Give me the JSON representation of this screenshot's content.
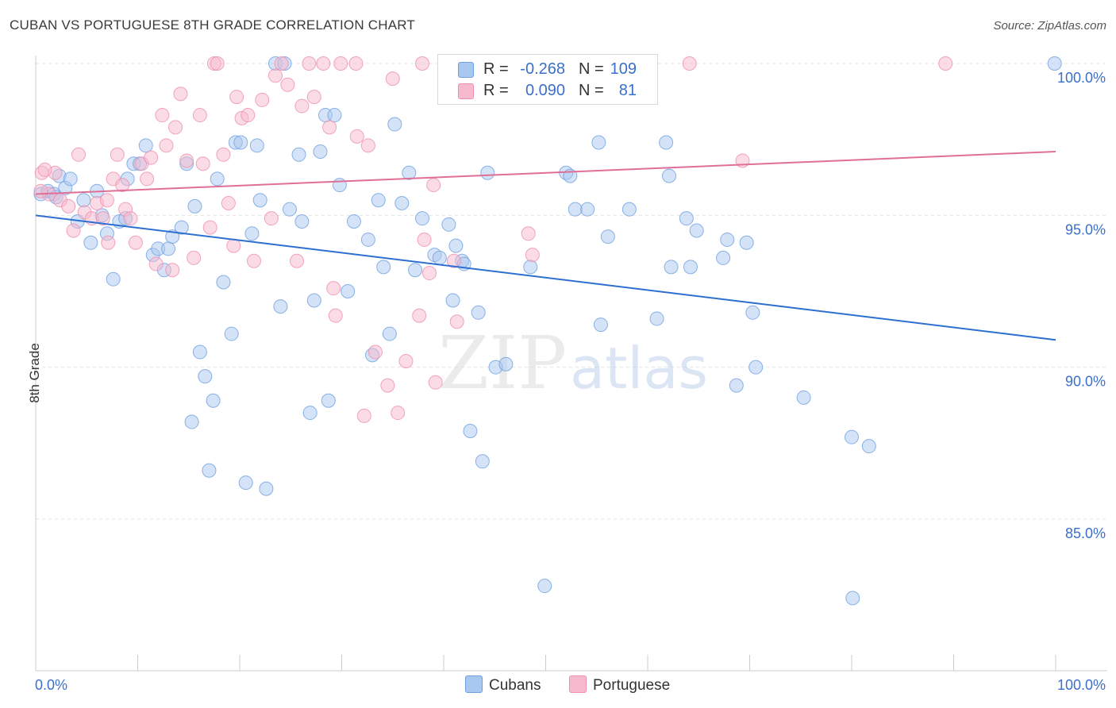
{
  "header": {
    "title": "CUBAN VS PORTUGUESE 8TH GRADE CORRELATION CHART",
    "source": "Source: ZipAtlas.com"
  },
  "watermark": {
    "zip": "ZIP",
    "atlas": "atlas"
  },
  "legend_top": {
    "rows": [
      {
        "series": "Cubans",
        "r_label": "R =",
        "r_value": "-0.268",
        "n_label": "N =",
        "n_value": "109",
        "color": "#a9c8f0"
      },
      {
        "series": "Portuguese",
        "r_label": "R =",
        "r_value": "0.090",
        "n_label": "N =",
        "n_value": "81",
        "color": "#f7b9cd"
      }
    ]
  },
  "legend_bottom": [
    {
      "label": "Cubans",
      "color": "#a9c8f0"
    },
    {
      "label": "Portuguese",
      "color": "#f7b9cd"
    }
  ],
  "chart_data": {
    "type": "scatter",
    "title": "CUBAN VS PORTUGUESE 8TH GRADE CORRELATION CHART",
    "xlabel": "",
    "ylabel": "8th Grade",
    "xlim": [
      0,
      100
    ],
    "ylim": [
      80,
      100.5
    ],
    "x_tick_labels": [
      "0.0%",
      "100.0%"
    ],
    "y_ticks": [
      85,
      90,
      95,
      100
    ],
    "y_tick_labels": [
      "85.0%",
      "90.0%",
      "95.0%",
      "100.0%"
    ],
    "grid": true,
    "colors": {
      "cubans_fill": "#a9c8f0",
      "cubans_stroke": "#6fa0e0",
      "cubans_line": "#2d6fd1",
      "portuguese_fill": "#f7b9cd",
      "portuguese_stroke": "#ee8fae",
      "portuguese_line": "#e06f98",
      "axis_text": "#3b6fc9"
    },
    "series": [
      {
        "name": "Cubans",
        "trend": {
          "x": [
            0,
            100
          ],
          "y": [
            95.0,
            90.9
          ]
        },
        "points": [
          [
            0.5,
            95.7
          ],
          [
            1.2,
            95.8
          ],
          [
            1.8,
            95.7
          ],
          [
            2.3,
            96.3
          ],
          [
            2.9,
            95.9
          ],
          [
            3.4,
            96.2
          ],
          [
            4.1,
            94.8
          ],
          [
            4.7,
            95.5
          ],
          [
            5.4,
            94.1
          ],
          [
            6.0,
            95.8
          ],
          [
            6.5,
            95.0
          ],
          [
            7.0,
            94.4
          ],
          [
            7.6,
            92.9
          ],
          [
            8.2,
            94.8
          ],
          [
            9.0,
            96.2
          ],
          [
            9.6,
            96.7
          ],
          [
            10.8,
            97.3
          ],
          [
            11.5,
            93.7
          ],
          [
            12.0,
            93.9
          ],
          [
            12.6,
            93.2
          ],
          [
            13.0,
            93.9
          ],
          [
            13.4,
            94.3
          ],
          [
            14.3,
            94.6
          ],
          [
            14.8,
            96.7
          ],
          [
            15.3,
            88.2
          ],
          [
            15.6,
            95.3
          ],
          [
            16.1,
            90.5
          ],
          [
            16.6,
            89.7
          ],
          [
            17.0,
            86.6
          ],
          [
            17.4,
            88.9
          ],
          [
            17.8,
            96.2
          ],
          [
            18.4,
            92.8
          ],
          [
            19.2,
            91.1
          ],
          [
            19.6,
            97.4
          ],
          [
            20.1,
            97.4
          ],
          [
            20.6,
            86.2
          ],
          [
            21.2,
            94.4
          ],
          [
            21.7,
            97.3
          ],
          [
            22.0,
            95.5
          ],
          [
            22.6,
            86.0
          ],
          [
            23.5,
            100.0
          ],
          [
            24.0,
            92.0
          ],
          [
            24.4,
            100.0
          ],
          [
            24.9,
            95.2
          ],
          [
            25.8,
            97.0
          ],
          [
            26.1,
            94.8
          ],
          [
            26.9,
            88.5
          ],
          [
            27.3,
            92.2
          ],
          [
            27.9,
            97.1
          ],
          [
            28.4,
            98.3
          ],
          [
            28.7,
            88.9
          ],
          [
            29.3,
            98.3
          ],
          [
            29.8,
            96.0
          ],
          [
            30.6,
            92.5
          ],
          [
            31.2,
            94.8
          ],
          [
            32.6,
            94.2
          ],
          [
            33.0,
            90.4
          ],
          [
            33.6,
            95.5
          ],
          [
            34.1,
            93.3
          ],
          [
            34.7,
            91.1
          ],
          [
            35.2,
            98.0
          ],
          [
            35.9,
            95.4
          ],
          [
            36.6,
            96.4
          ],
          [
            37.2,
            93.2
          ],
          [
            37.9,
            94.9
          ],
          [
            39.1,
            93.7
          ],
          [
            40.5,
            94.7
          ],
          [
            40.9,
            92.2
          ],
          [
            41.2,
            94.0
          ],
          [
            41.8,
            93.5
          ],
          [
            42.0,
            93.4
          ],
          [
            42.6,
            87.9
          ],
          [
            43.4,
            91.8
          ],
          [
            43.8,
            86.9
          ],
          [
            44.3,
            96.4
          ],
          [
            45.1,
            90.0
          ],
          [
            46.1,
            90.1
          ],
          [
            48.5,
            93.3
          ],
          [
            49.9,
            82.8
          ],
          [
            52.0,
            96.4
          ],
          [
            52.4,
            96.3
          ],
          [
            52.9,
            95.2
          ],
          [
            54.1,
            95.2
          ],
          [
            55.4,
            91.4
          ],
          [
            56.1,
            94.3
          ],
          [
            58.2,
            95.2
          ],
          [
            60.9,
            91.6
          ],
          [
            61.8,
            97.4
          ],
          [
            62.1,
            96.3
          ],
          [
            62.3,
            93.3
          ],
          [
            63.8,
            94.9
          ],
          [
            64.2,
            93.3
          ],
          [
            64.8,
            94.5
          ],
          [
            67.4,
            93.6
          ],
          [
            67.8,
            94.2
          ],
          [
            68.7,
            89.4
          ],
          [
            69.7,
            94.1
          ],
          [
            70.3,
            91.8
          ],
          [
            70.6,
            90.0
          ],
          [
            75.3,
            89.0
          ],
          [
            80.0,
            87.7
          ],
          [
            80.1,
            82.4
          ],
          [
            81.7,
            87.4
          ],
          [
            99.9,
            100.0
          ],
          [
            2.0,
            95.6
          ],
          [
            8.8,
            94.9
          ],
          [
            10.2,
            96.7
          ],
          [
            39.6,
            93.6
          ],
          [
            55.2,
            97.4
          ]
        ]
      },
      {
        "name": "Portuguese",
        "trend": {
          "x": [
            0,
            100
          ],
          "y": [
            95.7,
            97.1
          ]
        },
        "points": [
          [
            0.6,
            96.4
          ],
          [
            1.3,
            95.7
          ],
          [
            1.9,
            96.4
          ],
          [
            2.4,
            95.5
          ],
          [
            3.2,
            95.3
          ],
          [
            3.7,
            94.5
          ],
          [
            4.2,
            97.0
          ],
          [
            4.8,
            95.1
          ],
          [
            5.5,
            94.9
          ],
          [
            6.0,
            95.4
          ],
          [
            6.6,
            94.9
          ],
          [
            7.1,
            94.1
          ],
          [
            7.6,
            96.2
          ],
          [
            8.0,
            97.0
          ],
          [
            8.5,
            96.0
          ],
          [
            8.8,
            95.2
          ],
          [
            9.3,
            94.9
          ],
          [
            9.8,
            94.1
          ],
          [
            10.4,
            96.7
          ],
          [
            10.9,
            96.2
          ],
          [
            11.3,
            96.9
          ],
          [
            11.8,
            93.4
          ],
          [
            12.4,
            98.3
          ],
          [
            12.8,
            97.3
          ],
          [
            13.4,
            93.2
          ],
          [
            13.7,
            97.9
          ],
          [
            14.2,
            99.0
          ],
          [
            14.8,
            96.8
          ],
          [
            15.5,
            93.6
          ],
          [
            16.1,
            98.3
          ],
          [
            16.4,
            96.7
          ],
          [
            17.1,
            94.6
          ],
          [
            17.5,
            100.0
          ],
          [
            17.8,
            100.0
          ],
          [
            18.4,
            97.0
          ],
          [
            18.9,
            95.4
          ],
          [
            19.4,
            94.0
          ],
          [
            19.7,
            98.9
          ],
          [
            20.2,
            98.2
          ],
          [
            20.8,
            98.3
          ],
          [
            21.4,
            93.5
          ],
          [
            22.2,
            98.8
          ],
          [
            23.1,
            94.9
          ],
          [
            23.5,
            99.6
          ],
          [
            24.1,
            100.0
          ],
          [
            24.7,
            99.3
          ],
          [
            25.6,
            93.5
          ],
          [
            26.1,
            98.6
          ],
          [
            26.8,
            100.0
          ],
          [
            27.3,
            98.9
          ],
          [
            28.2,
            100.0
          ],
          [
            28.8,
            97.9
          ],
          [
            29.2,
            92.6
          ],
          [
            29.4,
            91.7
          ],
          [
            29.9,
            100.0
          ],
          [
            31.4,
            100.0
          ],
          [
            31.5,
            97.6
          ],
          [
            32.2,
            88.4
          ],
          [
            32.6,
            97.3
          ],
          [
            33.3,
            90.5
          ],
          [
            34.5,
            89.4
          ],
          [
            35.0,
            99.5
          ],
          [
            35.5,
            88.5
          ],
          [
            36.3,
            90.2
          ],
          [
            37.6,
            91.7
          ],
          [
            37.9,
            100.0
          ],
          [
            38.1,
            94.2
          ],
          [
            38.6,
            93.1
          ],
          [
            39.0,
            96.0
          ],
          [
            39.2,
            89.5
          ],
          [
            41.0,
            93.5
          ],
          [
            41.3,
            91.5
          ],
          [
            48.3,
            94.4
          ],
          [
            48.7,
            93.7
          ],
          [
            51.8,
            100.0
          ],
          [
            64.1,
            100.0
          ],
          [
            69.3,
            96.8
          ],
          [
            89.2,
            100.0
          ],
          [
            0.5,
            95.8
          ],
          [
            7.0,
            95.5
          ],
          [
            0.9,
            96.5
          ]
        ]
      }
    ]
  }
}
